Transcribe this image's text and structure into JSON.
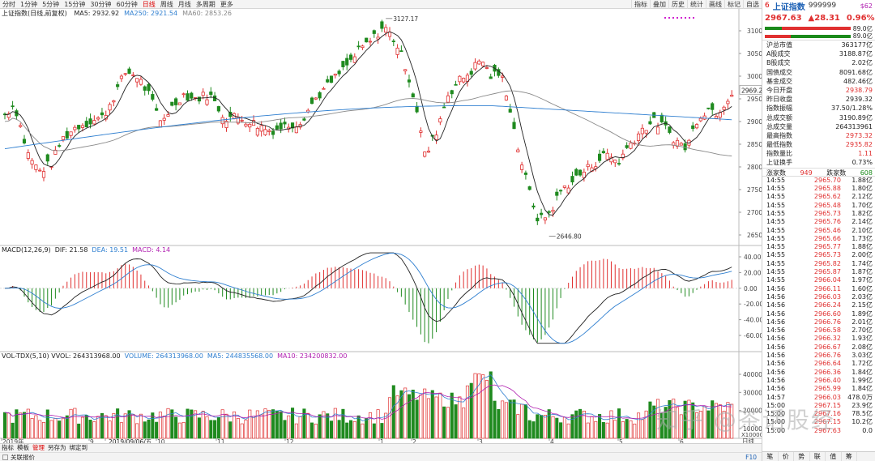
{
  "toolbar": {
    "tabs": [
      "分时",
      "1分钟",
      "5分钟",
      "15分钟",
      "30分钟",
      "60分钟",
      "日线",
      "周线",
      "月线",
      "多周期",
      "更多"
    ],
    "active_tab": "日线",
    "right_tabs": [
      "指标",
      "叠加",
      "历史",
      "统计",
      "画线",
      "标记",
      "自选"
    ]
  },
  "chart": {
    "title": "上证指数(日线,前复权)",
    "ma": [
      {
        "label": "MA5: 2932.92",
        "color": "#222222"
      },
      {
        "label": "MA250: 2921.54",
        "color": "#2f7fd0"
      },
      {
        "label": "MA60: 2853.26",
        "color": "#888888"
      }
    ],
    "price_ticks": [
      "3100",
      "3050",
      "3000",
      "2950",
      "2900",
      "2850",
      "2800",
      "2750",
      "2700",
      "2650"
    ],
    "current_price_tag": "2969.2",
    "high_label": "3127.17",
    "low_label": "2646.80",
    "macd_legend": [
      {
        "label": "MACD(12,26,9)",
        "color": "#222222"
      },
      {
        "label": "DIF: 21.58",
        "color": "#222222"
      },
      {
        "label": "DEA: 19.51",
        "color": "#2f7fd0"
      },
      {
        "label": "MACD: 4.14",
        "color": "#b01fb0"
      }
    ],
    "macd_ticks": [
      "40.00",
      "20.00",
      "0.00",
      "-20.00",
      "-40.00",
      "-60.00"
    ],
    "vol_legend": [
      {
        "label": "VOL-TDX(5,10) VVOL: 264313968.00",
        "color": "#222222"
      },
      {
        "label": "VOLUME: 264313968.00",
        "color": "#2f7fd0"
      },
      {
        "label": "MA5: 244835568.00",
        "color": "#2f7fd0"
      },
      {
        "label": "MA10: 234200832.00",
        "color": "#b01fb0"
      }
    ],
    "vol_ticks": [
      "40000",
      "30000",
      "20000",
      "10000"
    ],
    "vol_unit": "X10000",
    "date_labels": [
      "2019年",
      "9",
      "2019/09/06/五",
      "10",
      "11",
      "12",
      "1",
      "2",
      "3",
      "4",
      "5",
      "6"
    ],
    "date_right": "日线"
  },
  "quote": {
    "index_no": "6",
    "name": "上证指数",
    "code": "999999",
    "badge": "$62",
    "price": "2967.63",
    "change": "▲28.31",
    "change_pct": "0.96%",
    "bar_values": [
      "89.0亿",
      "89.0亿"
    ],
    "stats": [
      {
        "k": "沪总市值",
        "v": "363177亿",
        "c": ""
      },
      {
        "k": "A股成交",
        "v": "3188.87亿",
        "c": ""
      },
      {
        "k": "B股成交",
        "v": "2.02亿",
        "c": ""
      },
      {
        "k": "国债成交",
        "v": "8091.68亿",
        "c": ""
      },
      {
        "k": "基金成交",
        "v": "482.46亿",
        "c": ""
      },
      {
        "k": "今日开盘",
        "v": "2938.79",
        "c": "red"
      },
      {
        "k": "昨日收盘",
        "v": "2939.32",
        "c": ""
      },
      {
        "k": "指数振幅",
        "v": "37.50/1.28%",
        "c": ""
      },
      {
        "k": "总成交额",
        "v": "3190.89亿",
        "c": ""
      },
      {
        "k": "总成交量",
        "v": "264313961",
        "c": ""
      },
      {
        "k": "最高指数",
        "v": "2973.32",
        "c": "red"
      },
      {
        "k": "最低指数",
        "v": "2935.82",
        "c": "red"
      },
      {
        "k": "指数量比",
        "v": "1.11",
        "c": "red"
      },
      {
        "k": "上证换手",
        "v": "0.73%",
        "c": ""
      }
    ],
    "updown": {
      "up_label": "涨家数",
      "up": "949",
      "down_label": "跌家数",
      "down": "608"
    },
    "ticks": [
      [
        "14:55",
        "2965.70",
        "1.88亿"
      ],
      [
        "14:55",
        "2965.88",
        "1.80亿"
      ],
      [
        "14:55",
        "2965.62",
        "2.12亿"
      ],
      [
        "14:55",
        "2965.48",
        "1.70亿"
      ],
      [
        "14:55",
        "2965.73",
        "1.82亿"
      ],
      [
        "14:55",
        "2965.76",
        "2.14亿"
      ],
      [
        "14:55",
        "2965.46",
        "2.10亿"
      ],
      [
        "14:55",
        "2965.66",
        "1.73亿"
      ],
      [
        "14:55",
        "2965.77",
        "1.88亿"
      ],
      [
        "14:55",
        "2965.73",
        "2.00亿"
      ],
      [
        "14:55",
        "2965.82",
        "1.74亿"
      ],
      [
        "14:55",
        "2965.87",
        "1.87亿"
      ],
      [
        "14:55",
        "2966.04",
        "1.97亿"
      ],
      [
        "14:56",
        "2966.11",
        "1.60亿"
      ],
      [
        "14:56",
        "2966.03",
        "2.03亿"
      ],
      [
        "14:56",
        "2966.24",
        "2.15亿"
      ],
      [
        "14:56",
        "2966.60",
        "1.89亿"
      ],
      [
        "14:56",
        "2966.76",
        "2.01亿"
      ],
      [
        "14:56",
        "2966.58",
        "2.70亿"
      ],
      [
        "14:56",
        "2966.32",
        "1.93亿"
      ],
      [
        "14:56",
        "2966.67",
        "2.08亿"
      ],
      [
        "14:56",
        "2966.76",
        "3.03亿"
      ],
      [
        "14:56",
        "2966.64",
        "1.72亿"
      ],
      [
        "14:56",
        "2966.36",
        "1.84亿"
      ],
      [
        "14:56",
        "2966.40",
        "1.99亿"
      ],
      [
        "14:56",
        "2965.99",
        "1.84亿"
      ],
      [
        "14:57",
        "2966.03",
        "478.0万"
      ],
      [
        "15:00",
        "2967.15",
        "23.9亿"
      ],
      [
        "15:00",
        "2967.16",
        "78.5亿"
      ],
      [
        "15:00",
        "2967.15",
        "10.2亿"
      ],
      [
        "15:00",
        "2967.63",
        "0.0"
      ]
    ],
    "bottom_tabs": [
      "笔",
      "价",
      "势",
      "联",
      "值",
      "筹"
    ]
  },
  "bottom": {
    "tabs": [
      "指标",
      "模板",
      "管理",
      "另存为",
      "绑定到"
    ],
    "active_tab": "管理",
    "status": "关联报价",
    "f10": "F10"
  },
  "watermark": "知乎 @茶话股经"
}
